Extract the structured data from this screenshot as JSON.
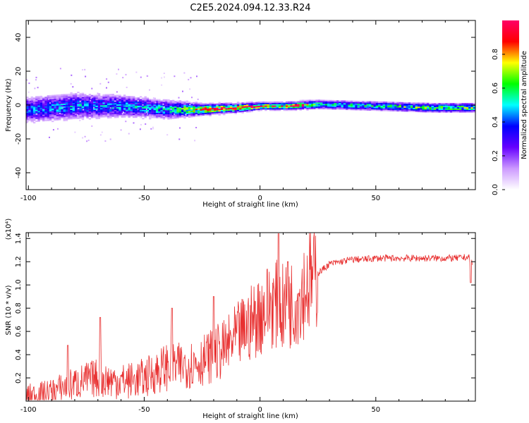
{
  "title": "C2E5.2024.094.12.33.R24",
  "chart_data": [
    {
      "type": "heatmap",
      "xlabel": "Height of straight line (km)",
      "ylabel": "Frequency (Hz)",
      "xlim": [
        -101,
        93
      ],
      "ylim": [
        -50,
        50
      ],
      "xticks": [
        "-100",
        "-50",
        "0",
        "50"
      ],
      "yticks": [
        "40",
        "20",
        "0",
        "-20",
        "-40"
      ],
      "grid": false,
      "colorbar": {
        "label": "Normalized spectral amplitude",
        "range": [
          0.0,
          1.0
        ],
        "ticks": [
          "0.0",
          "0.2",
          "0.4",
          "0.6",
          "0.8"
        ],
        "colors": [
          "#ffffff",
          "#cc99ff",
          "#6600ff",
          "#0000ff",
          "#00ffff",
          "#00ff00",
          "#ffff00",
          "#ff0000",
          "#ff0066"
        ]
      },
      "ridge": [
        {
          "x": -100,
          "center": -3,
          "halfwidth": 7,
          "peak": 0.45
        },
        {
          "x": -80,
          "center": -1,
          "halfwidth": 7,
          "peak": 0.5
        },
        {
          "x": -60,
          "center": -1,
          "halfwidth": 6,
          "peak": 0.5
        },
        {
          "x": -40,
          "center": -3,
          "halfwidth": 5,
          "peak": 0.55
        },
        {
          "x": -25,
          "center": -3,
          "halfwidth": 3,
          "peak": 0.9
        },
        {
          "x": -10,
          "center": -2,
          "halfwidth": 2.5,
          "peak": 0.9
        },
        {
          "x": 0,
          "center": -1,
          "halfwidth": 2,
          "peak": 0.95
        },
        {
          "x": 10,
          "center": -1,
          "halfwidth": 2,
          "peak": 0.95
        },
        {
          "x": 25,
          "center": 0,
          "halfwidth": 2.5,
          "peak": 0.6
        },
        {
          "x": 50,
          "center": -1,
          "halfwidth": 2.5,
          "peak": 0.6
        },
        {
          "x": 75,
          "center": -2,
          "halfwidth": 2.5,
          "peak": 0.7
        },
        {
          "x": 92,
          "center": -2,
          "halfwidth": 2.5,
          "peak": 0.7
        }
      ]
    },
    {
      "type": "line",
      "xlabel": "Height of straight line (km)",
      "ylabel": "SNR (10 * v/v)",
      "yscale_label": "(x10⁴)",
      "xlim": [
        -101,
        93
      ],
      "ylim": [
        0.0,
        1.45
      ],
      "xticks": [
        "-100",
        "-50",
        "0",
        "50"
      ],
      "yticks": [
        "0.2",
        "0.4",
        "0.6",
        "0.8",
        "1.0",
        "1.2",
        "1.4"
      ],
      "grid": false,
      "series": [
        {
          "color": "#e83030",
          "x": [
            -100,
            -95,
            -90,
            -85,
            -80,
            -75,
            -70,
            -65,
            -60,
            -55,
            -50,
            -45,
            -40,
            -35,
            -30,
            -25,
            -20,
            -15,
            -10,
            -5,
            0,
            5,
            10,
            15,
            20,
            25,
            30,
            35,
            40,
            45,
            50,
            55,
            60,
            65,
            70,
            75,
            80,
            85,
            90,
            92
          ],
          "y": [
            0.05,
            0.06,
            0.08,
            0.12,
            0.15,
            0.18,
            0.2,
            0.18,
            0.17,
            0.18,
            0.2,
            0.25,
            0.3,
            0.3,
            0.32,
            0.35,
            0.4,
            0.45,
            0.55,
            0.65,
            0.75,
            0.85,
            0.8,
            0.85,
            1.0,
            1.1,
            1.18,
            1.2,
            1.22,
            1.22,
            1.23,
            1.23,
            1.23,
            1.23,
            1.23,
            1.23,
            1.23,
            1.23,
            1.24,
            1.18
          ],
          "spikes": [
            {
              "x": -83,
              "y": 0.48
            },
            {
              "x": -69,
              "y": 0.72
            },
            {
              "x": -38,
              "y": 0.8
            },
            {
              "x": -20,
              "y": 0.9
            },
            {
              "x": 8,
              "y": 1.44
            },
            {
              "x": 12,
              "y": 1.2
            },
            {
              "x": 91,
              "y": 1.02
            }
          ]
        }
      ]
    }
  ]
}
